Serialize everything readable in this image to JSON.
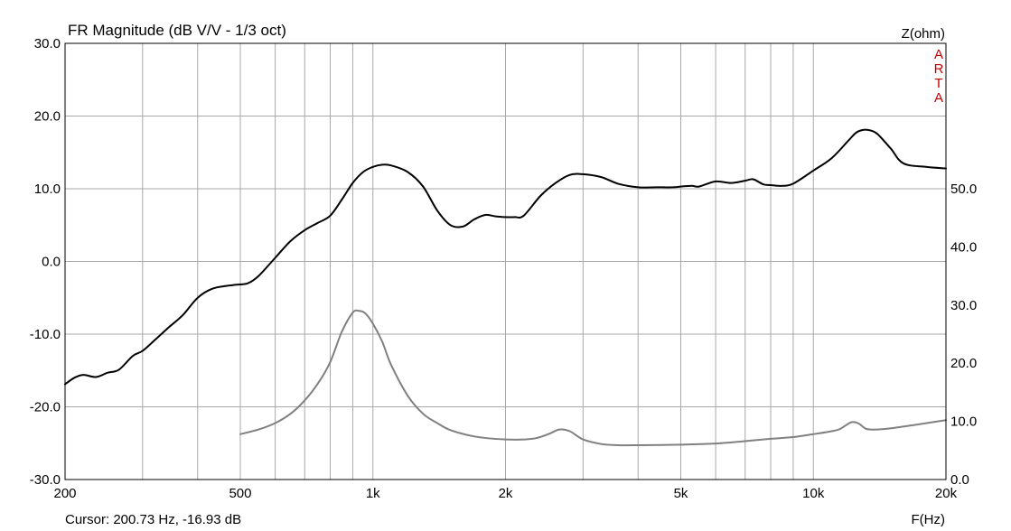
{
  "chart_data": {
    "type": "line",
    "title": "FR Magnitude (dB V/V - 1/3 oct)",
    "xlabel": "F(Hz)",
    "ylabel": "",
    "ylabel_right": "Z(ohm)",
    "watermark": [
      "A",
      "R",
      "T",
      "A"
    ],
    "cursor_readout": "Cursor: 200.73 Hz, -16.93 dB",
    "x_scale": "log",
    "xlim": [
      200,
      20000
    ],
    "ylim": [
      -30,
      30
    ],
    "y2lim": [
      0,
      75
    ],
    "grid": true,
    "x_ticks": [
      {
        "value": 200,
        "label": "200"
      },
      {
        "value": 500,
        "label": "500"
      },
      {
        "value": 1000,
        "label": "1k"
      },
      {
        "value": 2000,
        "label": "2k"
      },
      {
        "value": 5000,
        "label": "5k"
      },
      {
        "value": 10000,
        "label": "10k"
      },
      {
        "value": 20000,
        "label": "20k"
      }
    ],
    "x_minor_grid": [
      300,
      400,
      600,
      700,
      800,
      900,
      3000,
      4000,
      6000,
      7000,
      8000,
      9000
    ],
    "y_ticks": [
      {
        "value": 30,
        "label": "30.0"
      },
      {
        "value": 20,
        "label": "20.0"
      },
      {
        "value": 10,
        "label": "10.0"
      },
      {
        "value": 0,
        "label": "0.0"
      },
      {
        "value": -10,
        "label": "-10.0"
      },
      {
        "value": -20,
        "label": "-20.0"
      },
      {
        "value": -30,
        "label": "-30.0"
      }
    ],
    "y2_ticks": [
      {
        "value": 50,
        "label": "50.0"
      },
      {
        "value": 40,
        "label": "40.0"
      },
      {
        "value": 30,
        "label": "30.0"
      },
      {
        "value": 20,
        "label": "20.0"
      },
      {
        "value": 10,
        "label": "10.0"
      },
      {
        "value": 0,
        "label": "0.0"
      }
    ],
    "colors": {
      "grid": "#a8a8a8",
      "frame": "#000000",
      "magnitude": "#000000",
      "impedance": "#808080",
      "watermark": "#c00000"
    },
    "series": [
      {
        "axis": "left",
        "x": [
          200,
          210,
          220,
          235,
          250,
          265,
          285,
          300,
          320,
          345,
          370,
          400,
          430,
          460,
          490,
          520,
          550,
          600,
          650,
          700,
          750,
          800,
          850,
          900,
          950,
          1000,
          1050,
          1100,
          1200,
          1300,
          1400,
          1500,
          1600,
          1700,
          1800,
          1900,
          2000,
          2100,
          2200,
          2400,
          2600,
          2800,
          3000,
          3300,
          3600,
          4000,
          4400,
          4800,
          5000,
          5300,
          5500,
          6000,
          6500,
          7000,
          7300,
          7700,
          8000,
          8500,
          9000,
          10000,
          11000,
          12000,
          12500,
          13000,
          13500,
          14000,
          15000,
          16000,
          18000,
          20000
        ],
        "values": [
          -16.9,
          -16.0,
          -15.6,
          -15.9,
          -15.3,
          -14.9,
          -13.0,
          -12.3,
          -10.8,
          -9.0,
          -7.4,
          -5.0,
          -3.8,
          -3.4,
          -3.2,
          -3.0,
          -2.0,
          0.5,
          2.8,
          4.3,
          5.3,
          6.3,
          8.5,
          10.8,
          12.3,
          13.0,
          13.3,
          13.2,
          12.3,
          10.3,
          7.0,
          5.0,
          4.8,
          5.8,
          6.4,
          6.2,
          6.1,
          6.1,
          6.3,
          9.0,
          10.8,
          11.9,
          12.0,
          11.6,
          10.7,
          10.2,
          10.2,
          10.2,
          10.3,
          10.4,
          10.3,
          11.0,
          10.8,
          11.1,
          11.3,
          10.6,
          10.5,
          10.4,
          10.7,
          12.5,
          14.2,
          16.6,
          17.7,
          18.1,
          18.0,
          17.5,
          15.5,
          13.5,
          13.0,
          12.8
        ]
      },
      {
        "axis": "right",
        "x": [
          500,
          550,
          600,
          650,
          700,
          750,
          800,
          850,
          900,
          930,
          960,
          1000,
          1050,
          1100,
          1200,
          1300,
          1400,
          1500,
          1700,
          2000,
          2300,
          2500,
          2650,
          2800,
          3000,
          3300,
          3600,
          4000,
          5000,
          6000,
          7000,
          8000,
          9000,
          10000,
          11000,
          11500,
          12000,
          12300,
          12700,
          13200,
          14000,
          15000,
          17000,
          20000
        ],
        "values": [
          7.8,
          8.6,
          9.7,
          11.3,
          13.6,
          16.5,
          20.2,
          25.4,
          28.7,
          29.0,
          28.6,
          26.8,
          23.7,
          19.7,
          14.4,
          11.3,
          9.7,
          8.5,
          7.4,
          6.9,
          7.0,
          7.8,
          8.6,
          8.3,
          6.9,
          6.1,
          5.9,
          5.9,
          6.0,
          6.2,
          6.6,
          7.0,
          7.3,
          7.8,
          8.3,
          8.7,
          9.6,
          9.9,
          9.6,
          8.7,
          8.6,
          8.8,
          9.4,
          10.2
        ]
      }
    ]
  }
}
